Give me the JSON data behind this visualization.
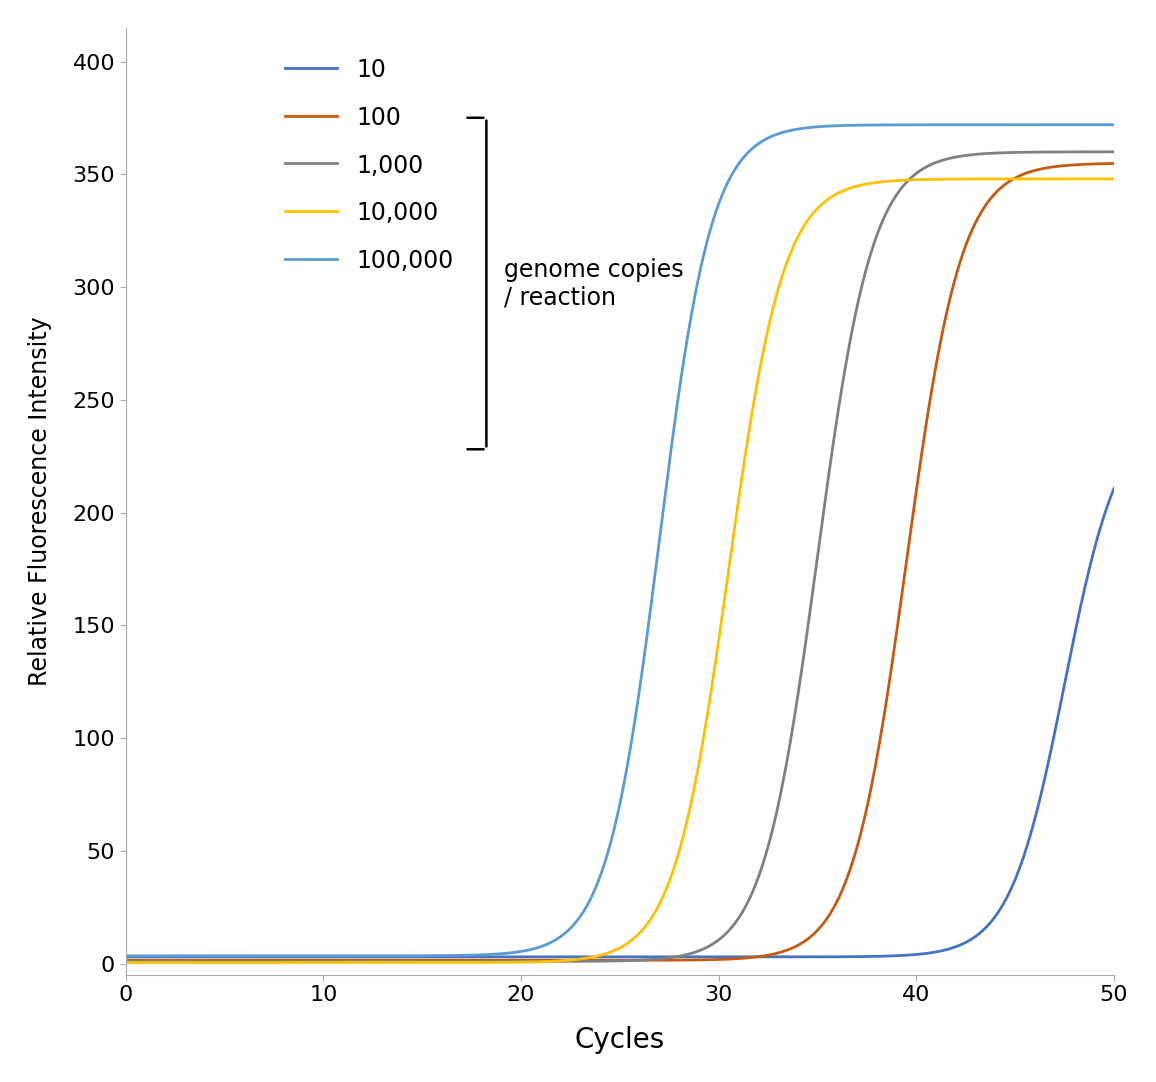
{
  "title": "",
  "xlabel": "Cycles",
  "ylabel": "Relative Fluorescence Intensity",
  "xlim": [
    0,
    50
  ],
  "ylim": [
    -5,
    415
  ],
  "xticks": [
    0,
    10,
    20,
    30,
    40,
    50
  ],
  "yticks": [
    0,
    50,
    100,
    150,
    200,
    250,
    300,
    350,
    400
  ],
  "series": [
    {
      "label": "10",
      "color": "#4472C4",
      "midpoint": 47.5,
      "steepness": 0.72,
      "plateau": 245,
      "baseline": 3.0
    },
    {
      "label": "100",
      "color": "#C55A11",
      "midpoint": 39.5,
      "steepness": 0.72,
      "plateau": 355,
      "baseline": 1.5
    },
    {
      "label": "1,000",
      "color": "#808080",
      "midpoint": 35.0,
      "steepness": 0.72,
      "plateau": 360,
      "baseline": 1.0
    },
    {
      "label": "10,000",
      "color": "#FFC000",
      "midpoint": 30.5,
      "steepness": 0.72,
      "plateau": 348,
      "baseline": 0.5
    },
    {
      "label": "100,000",
      "color": "#5B9BD5",
      "midpoint": 27.0,
      "steepness": 0.75,
      "plateau": 372,
      "baseline": 3.5
    }
  ],
  "legend_labels": [
    "10",
    "100",
    "1,000",
    "10,000",
    "100,000"
  ],
  "legend_colors": [
    "#4472C4",
    "#C55A11",
    "#808080",
    "#FFC000",
    "#5B9BD5"
  ],
  "annotation_text": "genome copies\n/ reaction",
  "background_color": "#ffffff",
  "linewidth": 2.0,
  "spine_color": "#AAAAAA"
}
